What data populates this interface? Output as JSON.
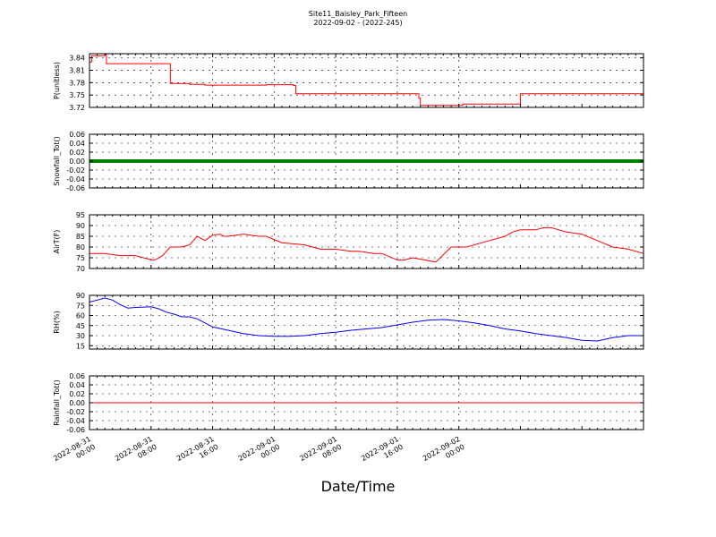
{
  "title": "Site11_Baisley_Park_Fifteen",
  "subtitle": "2022-09-02 - (2022-245)",
  "xlabel": "Date/Time",
  "x_ticks": [
    [
      "2022-08-31",
      "00:00"
    ],
    [
      "2022-08-31",
      "08:00"
    ],
    [
      "2022-08-31",
      "16:00"
    ],
    [
      "2022-09-01",
      "00:00"
    ],
    [
      "2022-09-01",
      "08:00"
    ],
    [
      "2022-09-01",
      "16:00"
    ],
    [
      "2022-09-02",
      "00:00"
    ]
  ],
  "chart_data": [
    {
      "type": "line",
      "ylabel": "P(unitless)",
      "color": "#ff0000",
      "ylim": [
        3.72,
        3.85
      ],
      "yticks": [
        "3.72",
        "3.75",
        "3.78",
        "3.81",
        "3.84"
      ],
      "ytick_values": [
        3.72,
        3.75,
        3.78,
        3.81,
        3.84
      ],
      "grid": true,
      "x_hours": [
        0,
        0.3,
        2.0,
        2.2,
        3.5,
        6.0,
        9.0,
        10.0,
        10.5,
        13.0,
        15.0,
        20.0,
        23.0,
        26.5,
        26.8,
        30.0,
        35.0,
        35.5,
        37.0,
        40.0,
        42.0,
        42.8,
        43.0,
        47.0,
        48.0,
        48.5,
        52.0,
        53.0,
        56.0,
        56.5,
        57.5,
        60.0,
        63.0,
        71.0,
        72.0
      ],
      "y": [
        3.83,
        3.845,
        3.848,
        3.826,
        3.826,
        3.826,
        3.826,
        3.826,
        3.778,
        3.776,
        3.774,
        3.774,
        3.775,
        3.773,
        3.753,
        3.753,
        3.753,
        3.753,
        3.753,
        3.753,
        3.753,
        3.742,
        3.725,
        3.725,
        3.725,
        3.728,
        3.728,
        3.728,
        3.753,
        3.753,
        3.753,
        3.753,
        3.753,
        3.753,
        3.728
      ]
    },
    {
      "type": "scatter",
      "ylabel": "Snowfall_Tot()",
      "color": "#008000",
      "ylim": [
        -0.06,
        0.06
      ],
      "yticks": [
        "-0.06",
        "-0.04",
        "-0.02",
        "0.00",
        "0.02",
        "0.04",
        "0.06"
      ],
      "ytick_values": [
        -0.06,
        -0.04,
        -0.02,
        0.0,
        0.02,
        0.04,
        0.06
      ],
      "grid": true,
      "x_hours": [
        0,
        72
      ],
      "y": [
        0,
        0
      ]
    },
    {
      "type": "line",
      "ylabel": "AirT(F)",
      "color": "#ff0000",
      "ylim": [
        70,
        95
      ],
      "yticks": [
        "70",
        "75",
        "80",
        "85",
        "90",
        "95"
      ],
      "ytick_values": [
        70,
        75,
        80,
        85,
        90,
        95
      ],
      "grid": true,
      "x_hours": [
        0,
        2,
        4,
        6,
        8,
        8.5,
        9.5,
        10.5,
        12,
        13,
        14,
        15,
        16,
        17,
        17.5,
        18,
        20,
        22,
        23,
        25,
        28,
        30,
        32,
        34,
        35,
        37,
        38,
        40,
        41,
        42,
        45,
        47,
        49,
        51,
        52,
        53,
        54,
        55,
        56,
        57,
        58,
        59,
        60,
        61,
        62,
        64,
        66,
        68,
        70,
        72
      ],
      "y": [
        77,
        77,
        76,
        76,
        74,
        74,
        76,
        80,
        80,
        81,
        85,
        83,
        85.5,
        86,
        85,
        85,
        86,
        85,
        85,
        82,
        81,
        79,
        79,
        78,
        78,
        77,
        77,
        74,
        74,
        75,
        73,
        80,
        80,
        82,
        83,
        84,
        85,
        87,
        88,
        88,
        88,
        89,
        89,
        88,
        87,
        86,
        83,
        80,
        79,
        77
      ]
    },
    {
      "type": "line",
      "ylabel": "RH(%)",
      "color": "#0000ff",
      "ylim": [
        10,
        90
      ],
      "yticks": [
        "15",
        "30",
        "45",
        "60",
        "75",
        "90"
      ],
      "ytick_values": [
        15,
        30,
        45,
        60,
        75,
        90
      ],
      "grid": true,
      "x_hours": [
        0,
        1,
        2,
        3,
        4,
        5,
        6,
        8,
        9,
        10,
        11,
        12,
        13,
        14,
        16,
        18,
        20,
        22,
        24,
        26,
        28,
        30,
        32,
        34,
        36,
        38,
        40,
        42,
        44,
        46,
        48,
        50,
        52,
        54,
        56,
        58,
        60,
        62,
        64,
        66,
        68,
        70,
        72
      ],
      "y": [
        80,
        83,
        86,
        83,
        76,
        71,
        72,
        73,
        70,
        65,
        62,
        58,
        58,
        55,
        43,
        38,
        33,
        30,
        29,
        29,
        30,
        33,
        35,
        38,
        40,
        42,
        46,
        50,
        53,
        54,
        52,
        49,
        45,
        40,
        37,
        33,
        30,
        27,
        23,
        22,
        27,
        30,
        30
      ]
    },
    {
      "type": "line",
      "ylabel": "Rainfall_Tot()",
      "color": "#ff0000",
      "ylim": [
        -0.06,
        0.06
      ],
      "yticks": [
        "-0.06",
        "-0.04",
        "-0.02",
        "0.00",
        "0.02",
        "0.04",
        "0.06"
      ],
      "ytick_values": [
        -0.06,
        -0.04,
        -0.02,
        0.0,
        0.02,
        0.04,
        0.06
      ],
      "grid": true,
      "x_hours": [
        0,
        72
      ],
      "y": [
        0,
        0
      ]
    }
  ]
}
